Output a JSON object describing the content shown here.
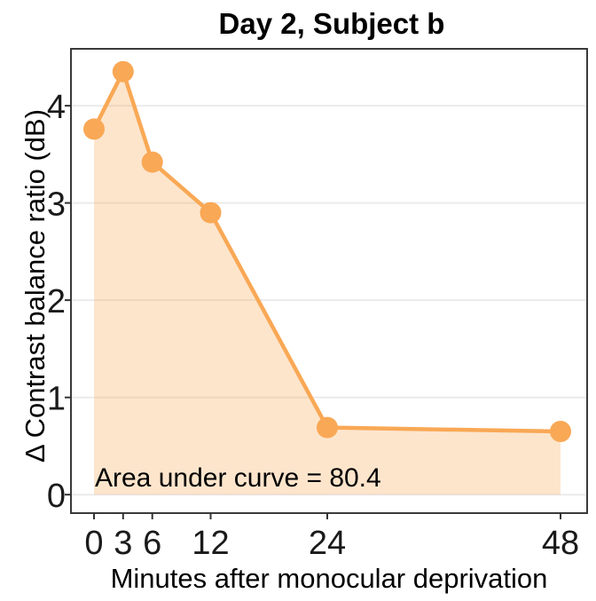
{
  "chart_data": {
    "type": "area",
    "title": "Day 2, Subject b",
    "xlabel": "Minutes after monocular deprivation",
    "ylabel": "Δ Contrast balance ratio (dB)",
    "annotation": "Area under curve = 80.4",
    "area_under_curve": 80.4,
    "x": [
      0,
      3,
      6,
      12,
      24,
      48
    ],
    "values": [
      3.76,
      4.35,
      3.42,
      2.9,
      0.69,
      0.65
    ],
    "series_name": "delta contrast balance ratio",
    "xticks": {
      "values": [
        0,
        3,
        6,
        12,
        24,
        48
      ],
      "labels": [
        "0",
        "3",
        "6",
        "12",
        "24",
        "48"
      ]
    },
    "yticks": {
      "values": [
        0,
        1,
        2,
        3,
        4
      ],
      "labels": [
        "0",
        "1",
        "2",
        "3",
        "4"
      ]
    },
    "xlim": [
      -2.37,
      50.74
    ],
    "ylim": [
      -0.19,
      4.585
    ],
    "grid": "horizontal-major-only",
    "legend": "none",
    "baseline_value": 0,
    "colors": {
      "line": "#F9A855",
      "marker": "#F9A855",
      "area_fill": "rgba(249,168,85,0.30)",
      "gridline": "#EBEBEB",
      "panel_border": "#3A3A3A",
      "tick_mark": "#333333",
      "text": "#000000",
      "background": "#FFFFFF"
    }
  }
}
